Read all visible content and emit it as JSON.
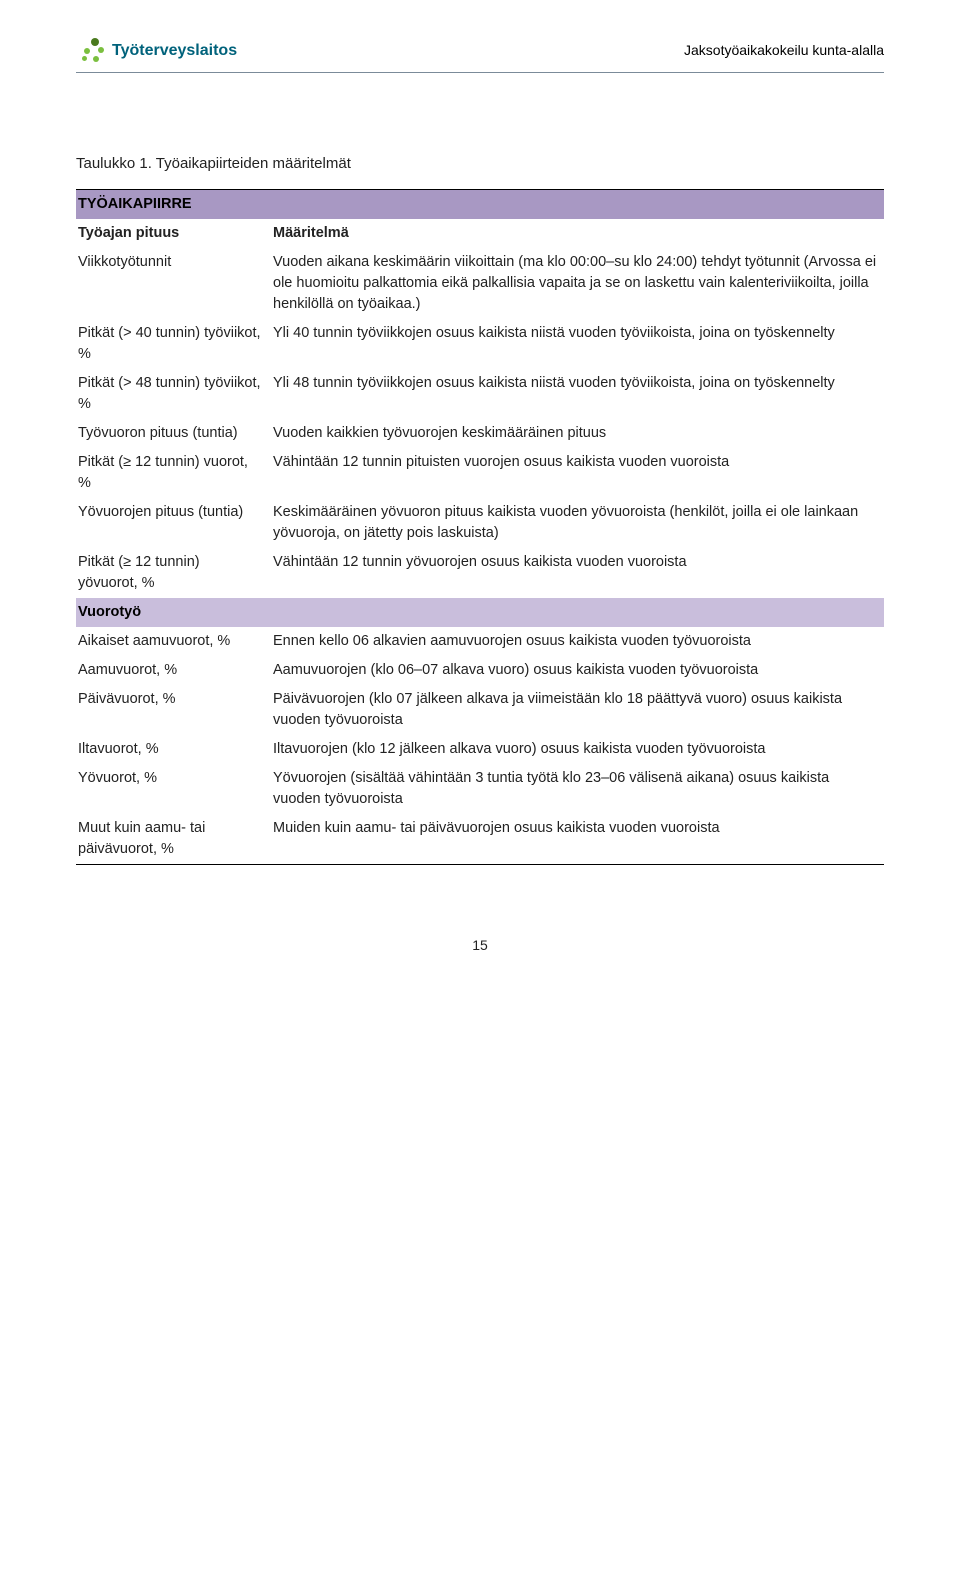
{
  "header": {
    "brand": "Työterveyslaitos",
    "running_title": "Jaksotyöaikakokeilu kunta-alalla"
  },
  "caption": "Taulukko 1. Työaikapiirteiden määritelmät",
  "section1": {
    "title": "TYÖAIKAPIIRRE",
    "head_term": "Työajan pituus",
    "head_def": "Määritelmä",
    "rows": [
      {
        "term": "Viikkotyötunnit",
        "def": "Vuoden aikana keskimäärin viikoittain (ma klo 00:00–su klo 24:00) tehdyt työtunnit (Arvossa ei ole huomioitu palkattomia eikä palkallisia vapaita ja se on laskettu vain kalenteriviikoilta, joilla henkilöllä on työaikaa.)"
      },
      {
        "term": "Pitkät (> 40 tunnin) työviikot, %",
        "def": "Yli 40 tunnin työviikkojen osuus kaikista niistä vuoden työviikoista, joina on työskennelty"
      },
      {
        "term": "Pitkät (> 48 tunnin) työviikot, %",
        "def": "Yli 48 tunnin työviikkojen osuus kaikista niistä vuoden työviikoista, joina on työskennelty"
      },
      {
        "term": "Työvuoron pituus (tuntia)",
        "def": "Vuoden kaikkien työvuorojen keskimääräinen pituus"
      },
      {
        "term": "Pitkät (≥ 12 tunnin) vuorot, %",
        "def": "Vähintään 12 tunnin pituisten vuorojen osuus kaikista vuoden vuoroista"
      },
      {
        "term": "Yövuorojen pituus (tuntia)",
        "def": "Keskimääräinen yövuoron pituus kaikista vuoden yövuoroista (henkilöt, joilla ei ole lainkaan yövuoroja, on jätetty pois laskuista)"
      },
      {
        "term": "Pitkät (≥ 12 tunnin) yövuorot, %",
        "def": "Vähintään 12 tunnin yövuorojen osuus kaikista vuoden vuoroista"
      }
    ]
  },
  "section2": {
    "title": "Vuorotyö",
    "rows": [
      {
        "term": "Aikaiset aamuvuorot, %",
        "def": "Ennen kello 06 alkavien aamuvuorojen osuus kaikista vuoden työvuoroista"
      },
      {
        "term": "Aamuvuorot, %",
        "def": "Aamuvuorojen (klo 06–07 alkava vuoro) osuus kaikista vuoden työvuoroista"
      },
      {
        "term": "Päivävuorot, %",
        "def": "Päivävuorojen (klo 07 jälkeen alkava ja viimeistään klo 18 päättyvä vuoro) osuus kaikista vuoden työvuoroista"
      },
      {
        "term": "Iltavuorot, %",
        "def": "Iltavuorojen (klo 12 jälkeen alkava vuoro) osuus kaikista vuoden työvuoroista"
      },
      {
        "term": "Yövuorot, %",
        "def": "Yövuorojen (sisältää vähintään 3 tuntia työtä klo 23–06 välisenä aikana) osuus kaikista vuoden työvuoroista"
      },
      {
        "term": "Muut kuin aamu- tai päivävuorot, %",
        "def": "Muiden kuin aamu- tai päivävuorojen osuus kaikista vuoden vuoroista"
      }
    ]
  },
  "pagenum": "15"
}
